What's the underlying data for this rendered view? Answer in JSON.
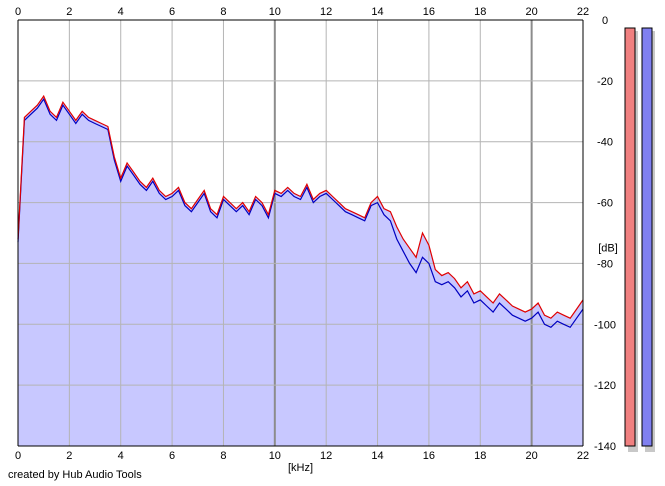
{
  "credit": "created by Hub Audio Tools",
  "colors": {
    "background": "#ffffff",
    "plot_fill": "#c8c8ff",
    "channel_left": "#e00000",
    "channel_right": "#0000c0",
    "grid": "#b4b4b4",
    "meter_left": "#f08080",
    "meter_right": "#8080f0"
  },
  "chart_data": {
    "type": "line",
    "xlabel": "[kHz]",
    "ylabel": "[dB]",
    "xlim": [
      0,
      22
    ],
    "ylim": [
      -140,
      0
    ],
    "x_ticks": [
      "0",
      "2",
      "4",
      "6",
      "8",
      "10",
      "12",
      "14",
      "16",
      "18",
      "20",
      "22"
    ],
    "y_ticks": [
      "0",
      "-20",
      "-40",
      "-60",
      "-80",
      "-100",
      "-120",
      "-140"
    ],
    "grid": true,
    "x": [
      0.0,
      0.25,
      0.5,
      0.75,
      1.0,
      1.25,
      1.5,
      1.75,
      2.0,
      2.25,
      2.5,
      2.75,
      3.0,
      3.25,
      3.5,
      3.75,
      4.0,
      4.25,
      4.5,
      4.75,
      5.0,
      5.25,
      5.5,
      5.75,
      6.0,
      6.25,
      6.5,
      6.75,
      7.0,
      7.25,
      7.5,
      7.75,
      8.0,
      8.25,
      8.5,
      8.75,
      9.0,
      9.25,
      9.5,
      9.75,
      10.0,
      10.25,
      10.5,
      10.75,
      11.0,
      11.25,
      11.5,
      11.75,
      12.0,
      12.25,
      12.5,
      12.75,
      13.0,
      13.25,
      13.5,
      13.75,
      14.0,
      14.25,
      14.5,
      14.75,
      15.0,
      15.25,
      15.5,
      15.75,
      16.0,
      16.25,
      16.5,
      16.75,
      17.0,
      17.25,
      17.5,
      17.75,
      18.0,
      18.25,
      18.5,
      18.75,
      19.0,
      19.25,
      19.5,
      19.75,
      20.0,
      20.25,
      20.5,
      20.75,
      21.0,
      21.25,
      21.5,
      21.75,
      22.0
    ],
    "series": [
      {
        "values": [
          -72,
          -32,
          -30,
          -28,
          -25,
          -30,
          -32,
          -27,
          -30,
          -33,
          -30,
          -32,
          -33,
          -34,
          -35,
          -45,
          -52,
          -47,
          -50,
          -53,
          -55,
          -52,
          -56,
          -58,
          -57,
          -55,
          -60,
          -62,
          -59,
          -56,
          -62,
          -64,
          -58,
          -60,
          -62,
          -60,
          -63,
          -58,
          -60,
          -64,
          -56,
          -57,
          -55,
          -57,
          -58,
          -54,
          -59,
          -57,
          -56,
          -58,
          -60,
          -62,
          -63,
          -64,
          -65,
          -60,
          -58,
          -62,
          -63,
          -68,
          -72,
          -75,
          -78,
          -70,
          -74,
          -82,
          -84,
          -83,
          -85,
          -88,
          -86,
          -90,
          -89,
          -91,
          -93,
          -90,
          -92,
          -94,
          -95,
          -96,
          -95,
          -93,
          -97,
          -98,
          -96,
          -97,
          -98,
          -95,
          -92
        ]
      },
      {
        "values": [
          -73,
          -33,
          -31,
          -29,
          -26,
          -31,
          -33,
          -28,
          -31,
          -34,
          -31,
          -33,
          -34,
          -35,
          -36,
          -46,
          -53,
          -48,
          -51,
          -54,
          -56,
          -53,
          -57,
          -59,
          -58,
          -56,
          -61,
          -63,
          -60,
          -57,
          -63,
          -65,
          -59,
          -61,
          -63,
          -61,
          -64,
          -59,
          -61,
          -65,
          -57,
          -58,
          -56,
          -58,
          -59,
          -55,
          -60,
          -58,
          -57,
          -59,
          -61,
          -63,
          -64,
          -65,
          -66,
          -61,
          -60,
          -64,
          -66,
          -72,
          -76,
          -80,
          -83,
          -78,
          -80,
          -86,
          -87,
          -86,
          -88,
          -91,
          -89,
          -93,
          -92,
          -94,
          -96,
          -93,
          -95,
          -97,
          -98,
          -99,
          -98,
          -96,
          -100,
          -101,
          -99,
          -100,
          -101,
          -98,
          -95
        ]
      }
    ]
  },
  "meters": {
    "left": 1.0,
    "right": 1.0
  }
}
